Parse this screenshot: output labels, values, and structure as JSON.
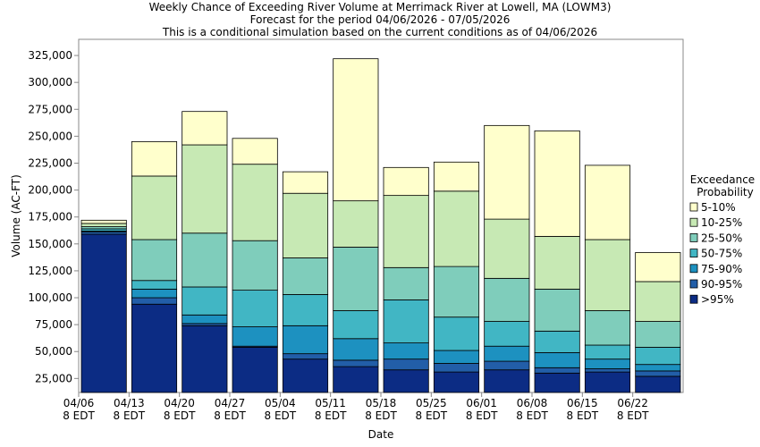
{
  "chart_data": {
    "type": "bar",
    "stacked": true,
    "title_lines": [
      "Weekly Chance of Exceeding River Volume at Merrimack River at Lowell, MA (LOWM3)",
      "Forecast for the period 04/06/2026 - 07/05/2026",
      "This is a conditional simulation based on the current conditions as of 04/06/2026"
    ],
    "xlabel": "Date",
    "ylabel": "Volume (AC-FT)",
    "ylim": [
      12000,
      340000
    ],
    "yticks": [
      25000,
      50000,
      75000,
      100000,
      125000,
      150000,
      175000,
      200000,
      225000,
      250000,
      275000,
      300000,
      325000
    ],
    "ytick_labels": [
      "25,000",
      "50,000",
      "75,000",
      "100,000",
      "125,000",
      "150,000",
      "175,000",
      "200,000",
      "225,000",
      "250,000",
      "275,000",
      "300,000",
      "325,000"
    ],
    "x_tick_labels": [
      [
        "04/06",
        "8 EDT"
      ],
      [
        "04/13",
        "8 EDT"
      ],
      [
        "04/20",
        "8 EDT"
      ],
      [
        "04/27",
        "8 EDT"
      ],
      [
        "05/04",
        "8 EDT"
      ],
      [
        "05/11",
        "8 EDT"
      ],
      [
        "05/18",
        "8 EDT"
      ],
      [
        "05/25",
        "8 EDT"
      ],
      [
        "06/01",
        "8 EDT"
      ],
      [
        "06/08",
        "8 EDT"
      ],
      [
        "06/15",
        "8 EDT"
      ],
      [
        "06/22",
        "8 EDT"
      ]
    ],
    "bars": [
      [
        159000,
        161000,
        162000,
        164000,
        166000,
        169000,
        172000
      ],
      [
        94000,
        100000,
        108000,
        116000,
        154000,
        213000,
        245000
      ],
      [
        74000,
        76000,
        84000,
        110000,
        160000,
        242000,
        273000
      ],
      [
        54000,
        55000,
        73000,
        107000,
        153000,
        224000,
        248000
      ],
      [
        43000,
        48000,
        74000,
        103000,
        137000,
        197000,
        217000
      ],
      [
        36000,
        42000,
        62000,
        88000,
        147000,
        190000,
        322000
      ],
      [
        33000,
        43000,
        58000,
        98000,
        128000,
        195000,
        221000
      ],
      [
        31000,
        39000,
        51000,
        82000,
        129000,
        199000,
        226000
      ],
      [
        33000,
        41000,
        55000,
        78000,
        118000,
        173000,
        260000
      ],
      [
        30000,
        35000,
        49000,
        69000,
        108000,
        157000,
        255000
      ],
      [
        31000,
        34000,
        43000,
        56000,
        88000,
        154000,
        223000
      ],
      [
        27000,
        32000,
        38000,
        54000,
        78000,
        115000,
        142000
      ]
    ],
    "legend": {
      "title_lines": [
        "Exceedance",
        "Probability"
      ],
      "placement": "right",
      "items": [
        {
          "label": "5-10%",
          "color": "#FFFFCC"
        },
        {
          "label": "10-25%",
          "color": "#C7E9B4"
        },
        {
          "label": "25-50%",
          "color": "#7FCDBB"
        },
        {
          "label": "50-75%",
          "color": "#41B6C4"
        },
        {
          "label": "75-90%",
          "color": "#1D91C0"
        },
        {
          "label": "90-95%",
          "color": "#225EA8"
        },
        {
          "label": ">95%",
          "color": "#0C2C84"
        }
      ]
    },
    "grid": false,
    "border_color": "#000000",
    "axis_color": "#888888"
  }
}
